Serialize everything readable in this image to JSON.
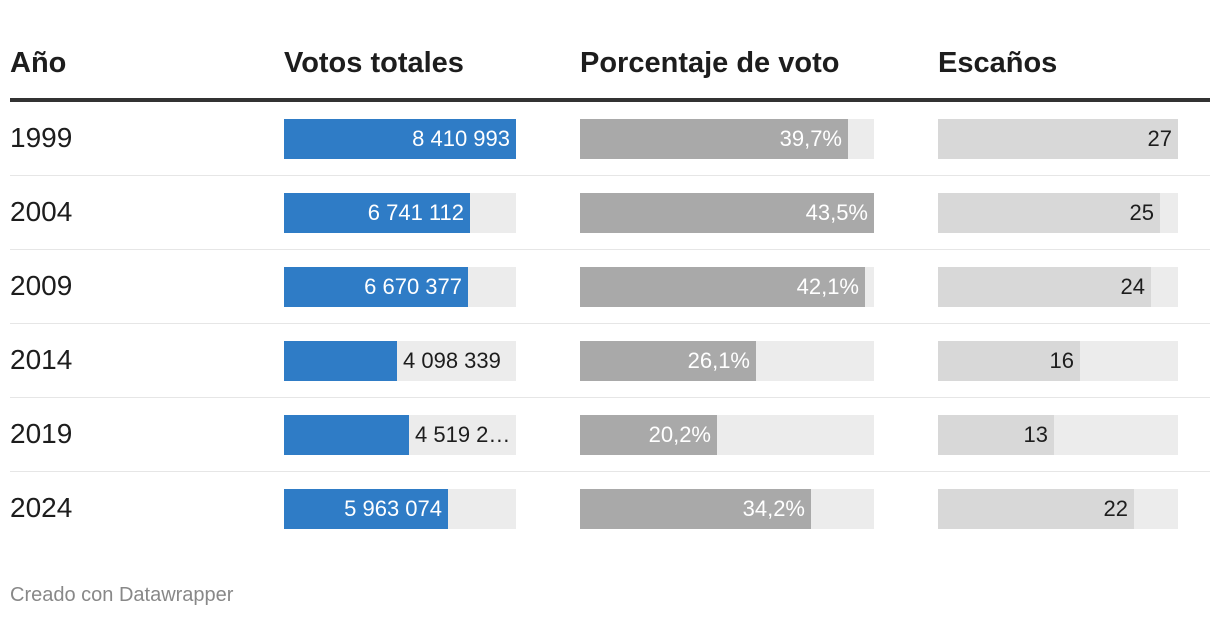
{
  "header": {
    "col_year": "Año",
    "col_votes": "Votos totales",
    "col_pct": "Porcentaje de voto",
    "col_seats": "Escaños"
  },
  "credit": "Creado con Datawrapper",
  "colors": {
    "votes_fill": "#2f7cc6",
    "pct_fill": "#a9a9a9",
    "seats_fill": "#d8d8d8",
    "track": "#ececec"
  },
  "chart_data": {
    "type": "table",
    "columns": [
      "Año",
      "Votos totales",
      "Porcentaje de voto",
      "Escaños"
    ],
    "rows": [
      {
        "year": "1999",
        "votes": 8410993,
        "votes_label": "8 410 993",
        "pct": 39.7,
        "pct_label": "39,7%",
        "seats": 27,
        "seats_label": "27"
      },
      {
        "year": "2004",
        "votes": 6741112,
        "votes_label": "6 741 112",
        "pct": 43.5,
        "pct_label": "43,5%",
        "seats": 25,
        "seats_label": "25"
      },
      {
        "year": "2009",
        "votes": 6670377,
        "votes_label": "6 670 377",
        "pct": 42.1,
        "pct_label": "42,1%",
        "seats": 24,
        "seats_label": "24"
      },
      {
        "year": "2014",
        "votes": 4098339,
        "votes_label": "4 098 339",
        "pct": 26.1,
        "pct_label": "26,1%",
        "seats": 16,
        "seats_label": "16"
      },
      {
        "year": "2019",
        "votes": 4519205,
        "votes_label": "4 519 2…",
        "pct": 20.2,
        "pct_label": "20,2%",
        "seats": 13,
        "seats_label": "13"
      },
      {
        "year": "2024",
        "votes": 5963074,
        "votes_label": "5 963 074",
        "pct": 34.2,
        "pct_label": "34,2%",
        "seats": 22,
        "seats_label": "22"
      }
    ]
  }
}
